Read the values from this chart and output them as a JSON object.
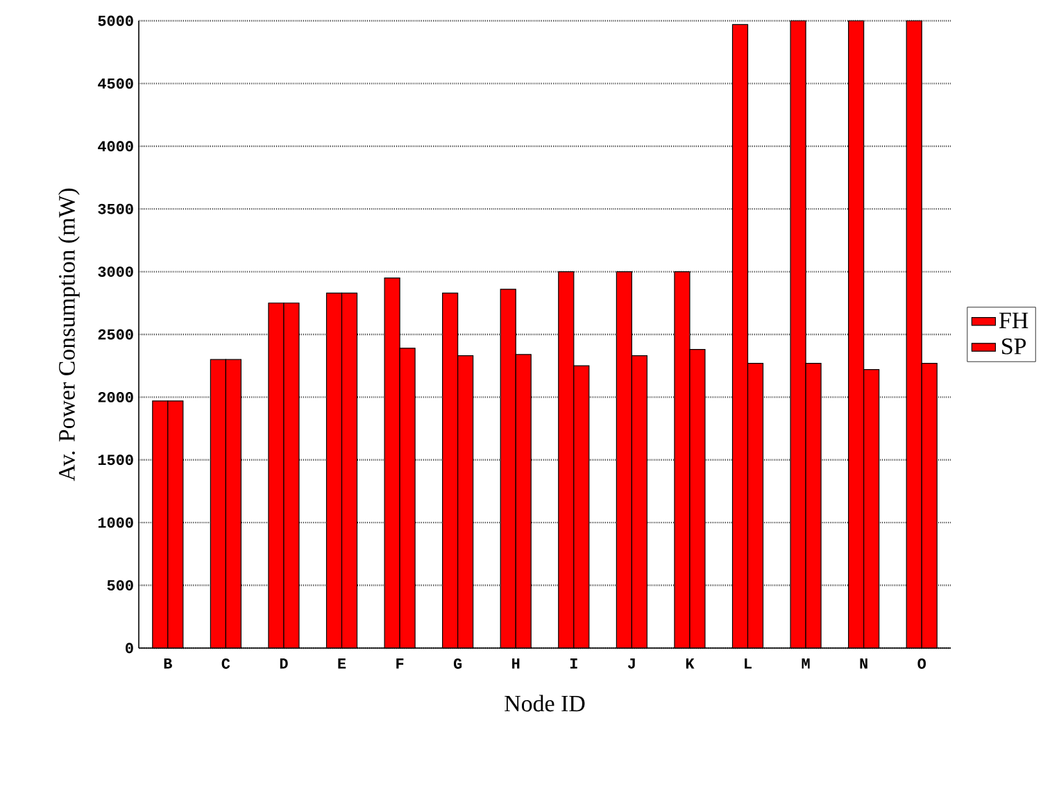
{
  "chart_data": {
    "type": "bar",
    "xlabel": "Node ID",
    "ylabel": "Av. Power Consumption (mW)",
    "categories": [
      "B",
      "C",
      "D",
      "E",
      "F",
      "G",
      "H",
      "I",
      "J",
      "K",
      "L",
      "M",
      "N",
      "O"
    ],
    "series": [
      {
        "name": "FH",
        "color": "#ff0000",
        "values": [
          1970,
          2300,
          2750,
          2830,
          2950,
          2830,
          2860,
          3000,
          3000,
          3000,
          4970,
          5000,
          5000,
          5000
        ]
      },
      {
        "name": "SP",
        "color": "#ff0000",
        "values": [
          1970,
          2300,
          2750,
          2830,
          2390,
          2330,
          2340,
          2250,
          2330,
          2380,
          2270,
          2270,
          2220,
          2270
        ]
      }
    ],
    "ylim": [
      0,
      5000
    ],
    "yticks": [
      0,
      500,
      1000,
      1500,
      2000,
      2500,
      3000,
      3500,
      4000,
      4500,
      5000
    ],
    "grid": "y",
    "legend": "right"
  }
}
